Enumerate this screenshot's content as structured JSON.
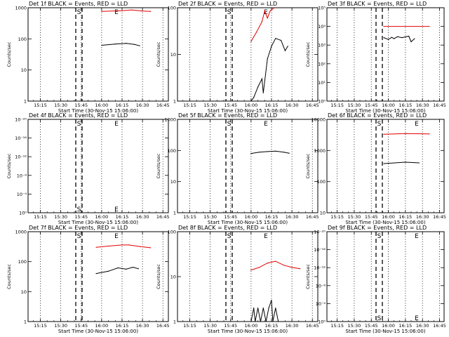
{
  "chart_data": [
    {
      "type": "line",
      "panel": "det-1f",
      "title": "Det 1f BLACK = Events, RED = LLD",
      "xlabel": "Start Time (30-Nov-15 15:06:00)",
      "ylabel": "Counts/sec",
      "yscale": "log",
      "ylim": [
        1,
        1000
      ],
      "yticklabels": [
        "1",
        "10",
        "100",
        "1000"
      ],
      "xticklabels": [
        "15:15",
        "15:30",
        "15:45",
        "16:00",
        "16:15",
        "16:30",
        "16:45"
      ],
      "event_markers": [
        "S",
        "E"
      ],
      "series": [
        {
          "color": "red",
          "points": [
            [
              "16:00",
              760
            ],
            [
              "16:15",
              800
            ],
            [
              "16:22",
              850
            ],
            [
              "16:30",
              780
            ],
            [
              "16:36",
              760
            ]
          ]
        },
        {
          "color": "black",
          "points": [
            [
              "16:00",
              62
            ],
            [
              "16:10",
              68
            ],
            [
              "16:18",
              72
            ],
            [
              "16:24",
              66
            ],
            [
              "16:28",
              60
            ]
          ]
        }
      ]
    },
    {
      "type": "line",
      "panel": "det-2f",
      "title": "Det 2f BLACK = Events, RED = LLD",
      "xlabel": "Start Time (30-Nov-15 15:06:00)",
      "ylabel": "Counts/sec",
      "yscale": "log",
      "ylim": [
        1,
        100
      ],
      "yticklabels": [
        "1",
        "10",
        "100"
      ],
      "xticklabels": [
        "15:15",
        "15:30",
        "15:45",
        "16:00",
        "16:15",
        "16:30",
        "16:45"
      ],
      "event_markers": [
        "S",
        "E"
      ],
      "series": [
        {
          "color": "red",
          "points": [
            [
              "16:00",
              19
            ],
            [
              "16:04",
              30
            ],
            [
              "16:08",
              50
            ],
            [
              "16:10",
              85
            ],
            [
              "16:12",
              60
            ],
            [
              "16:14",
              85
            ],
            [
              "16:17",
              110
            ]
          ]
        },
        {
          "color": "black",
          "points": [
            [
              "16:00",
              1
            ],
            [
              "16:02",
              1.2
            ],
            [
              "16:05",
              2
            ],
            [
              "16:08",
              3
            ],
            [
              "16:09",
              1.5
            ],
            [
              "16:12",
              8
            ],
            [
              "16:15",
              15
            ],
            [
              "16:18",
              22
            ],
            [
              "16:22",
              20
            ],
            [
              "16:25",
              12
            ],
            [
              "16:27",
              15
            ]
          ]
        }
      ]
    },
    {
      "type": "line",
      "panel": "det-3f",
      "title": "Det 3f BLACK = Events, RED = LLD",
      "xlabel": "Start Time (30-Nov-15 15:06:00)",
      "ylabel": "Counts/sec",
      "yscale": "log",
      "ylim": [
        1,
        100000
      ],
      "yticklabels": [
        "10⁰",
        "10¹",
        "10²",
        "10³",
        "10⁴",
        "10⁵"
      ],
      "xticklabels": [
        "15:15",
        "15:30",
        "15:45",
        "16:00",
        "16:15",
        "16:30",
        "16:45"
      ],
      "event_markers": [],
      "series": [
        {
          "color": "red",
          "points": [
            [
              "15:56",
              10000
            ],
            [
              "16:36",
              10000
            ]
          ]
        },
        {
          "color": "black",
          "points": [
            [
              "15:56",
              2500
            ],
            [
              "16:00",
              2000
            ],
            [
              "16:03",
              2600
            ],
            [
              "16:05",
              2200
            ],
            [
              "16:08",
              2800
            ],
            [
              "16:12",
              2500
            ],
            [
              "16:18",
              3000
            ],
            [
              "16:20",
              1500
            ],
            [
              "16:23",
              2200
            ]
          ]
        }
      ]
    },
    {
      "type": "line",
      "panel": "det-4f",
      "title": "Det 4f BLACK = Events, RED = LLD",
      "xlabel": "Start Time (30-Nov-15 15:06:00)",
      "ylabel": "Counts/sec",
      "yscale": "log",
      "ylim": [
        1e-20,
        1
      ],
      "yticklabels": [
        "10⁰",
        "10⁻⁴",
        "10⁻⁸",
        "10⁻¹²",
        "10⁻¹⁶",
        "10⁻²⁰"
      ],
      "xticklabels": [
        "15:15",
        "15:30",
        "15:45",
        "16:00",
        "16:15",
        "16:30",
        "16:45"
      ],
      "event_markers": [
        "S",
        "E"
      ],
      "series": []
    },
    {
      "type": "line",
      "panel": "det-5f",
      "title": "Det 5f BLACK = Events, RED = LLD",
      "xlabel": "Start Time (30-Nov-15 15:06:00)",
      "ylabel": "Counts/sec",
      "yscale": "log",
      "ylim": [
        1,
        1000
      ],
      "yticklabels": [
        "1",
        "10",
        "100",
        "1000"
      ],
      "xticklabels": [
        "15:15",
        "15:30",
        "15:45",
        "16:00",
        "16:15",
        "16:30",
        "16:45"
      ],
      "event_markers": [
        "S",
        "E"
      ],
      "series": [
        {
          "color": "black",
          "points": [
            [
              "16:00",
              80
            ],
            [
              "16:06",
              88
            ],
            [
              "16:12",
              92
            ],
            [
              "16:18",
              95
            ],
            [
              "16:24",
              88
            ],
            [
              "16:28",
              82
            ]
          ]
        }
      ]
    },
    {
      "type": "line",
      "panel": "det-6f",
      "title": "Det 6f BLACK = Events, RED = LLD",
      "xlabel": "Start Time (30-Nov-15 15:06:00)",
      "ylabel": "Counts/sec",
      "yscale": "log",
      "ylim": [
        10,
        10000
      ],
      "yticklabels": [
        "10",
        "100",
        "1000",
        "10000"
      ],
      "xticklabels": [
        "15:15",
        "15:30",
        "15:45",
        "16:00",
        "16:15",
        "16:30",
        "16:45"
      ],
      "event_markers": [
        "S",
        "E"
      ],
      "series": [
        {
          "color": "red",
          "points": [
            [
              "15:56",
              3300
            ],
            [
              "16:15",
              3500
            ],
            [
              "16:36",
              3400
            ]
          ]
        },
        {
          "color": "black",
          "points": [
            [
              "15:56",
              380
            ],
            [
              "16:15",
              420
            ],
            [
              "16:27",
              400
            ]
          ]
        }
      ]
    },
    {
      "type": "line",
      "panel": "det-7f",
      "title": "Det 7f BLACK = Events, RED = LLD",
      "xlabel": "Start Time (30-Nov-15 15:06:00)",
      "ylabel": "Counts/sec",
      "yscale": "log",
      "ylim": [
        1,
        1000
      ],
      "yticklabels": [
        "1",
        "10",
        "100",
        "1000"
      ],
      "xticklabels": [
        "15:15",
        "15:30",
        "15:45",
        "16:00",
        "16:15",
        "16:30",
        "16:45"
      ],
      "event_markers": [
        "S",
        "E"
      ],
      "series": [
        {
          "color": "red",
          "points": [
            [
              "15:56",
              300
            ],
            [
              "16:05",
              330
            ],
            [
              "16:15",
              360
            ],
            [
              "16:20",
              360
            ],
            [
              "16:28",
              320
            ],
            [
              "16:36",
              290
            ]
          ]
        },
        {
          "color": "black",
          "points": [
            [
              "15:56",
              40
            ],
            [
              "16:05",
              48
            ],
            [
              "16:12",
              62
            ],
            [
              "16:18",
              56
            ],
            [
              "16:23",
              65
            ],
            [
              "16:27",
              58
            ]
          ]
        }
      ]
    },
    {
      "type": "line",
      "panel": "det-8f",
      "title": "Det 8f BLACK = Events, RED = LLD",
      "xlabel": "Start Time (30-Nov-15 15:06:00)",
      "ylabel": "Counts/sec",
      "yscale": "log",
      "ylim": [
        1,
        100
      ],
      "yticklabels": [
        "1",
        "10",
        "100"
      ],
      "xticklabels": [
        "15:15",
        "15:30",
        "15:45",
        "16:00",
        "16:15",
        "16:30",
        "16:45"
      ],
      "event_markers": [
        "S",
        "E"
      ],
      "series": [
        {
          "color": "red",
          "points": [
            [
              "16:00",
              14
            ],
            [
              "16:06",
              16
            ],
            [
              "16:12",
              20
            ],
            [
              "16:18",
              22
            ],
            [
              "16:24",
              18
            ],
            [
              "16:30",
              16
            ],
            [
              "16:36",
              15
            ]
          ]
        },
        {
          "color": "black",
          "points": [
            [
              "16:00",
              1
            ],
            [
              "16:02",
              2
            ],
            [
              "16:03",
              1
            ],
            [
              "16:05",
              2
            ],
            [
              "16:07",
              1
            ],
            [
              "16:09",
              2
            ],
            [
              "16:11",
              1
            ],
            [
              "16:13",
              2
            ],
            [
              "16:15",
              3
            ],
            [
              "16:16",
              1
            ],
            [
              "16:18",
              2
            ],
            [
              "16:20",
              1
            ]
          ]
        }
      ]
    },
    {
      "type": "line",
      "panel": "det-9f",
      "title": "Det 9f BLACK = Events, RED = LLD",
      "xlabel": "Start Time (30-Nov-15 15:06:00)",
      "ylabel": "Counts/sec",
      "yscale": "log",
      "ylim": [
        1e-20,
        1
      ],
      "yticklabels": [
        "10⁰",
        "10⁻⁴",
        "10⁻⁸",
        "10⁻¹²",
        "10⁻¹⁶",
        "10⁻²⁰"
      ],
      "xticklabels": [
        "15:15",
        "15:30",
        "15:45",
        "16:00",
        "16:15",
        "16:30",
        "16:45"
      ],
      "event_markers": [
        "S",
        "E"
      ],
      "series": []
    }
  ]
}
